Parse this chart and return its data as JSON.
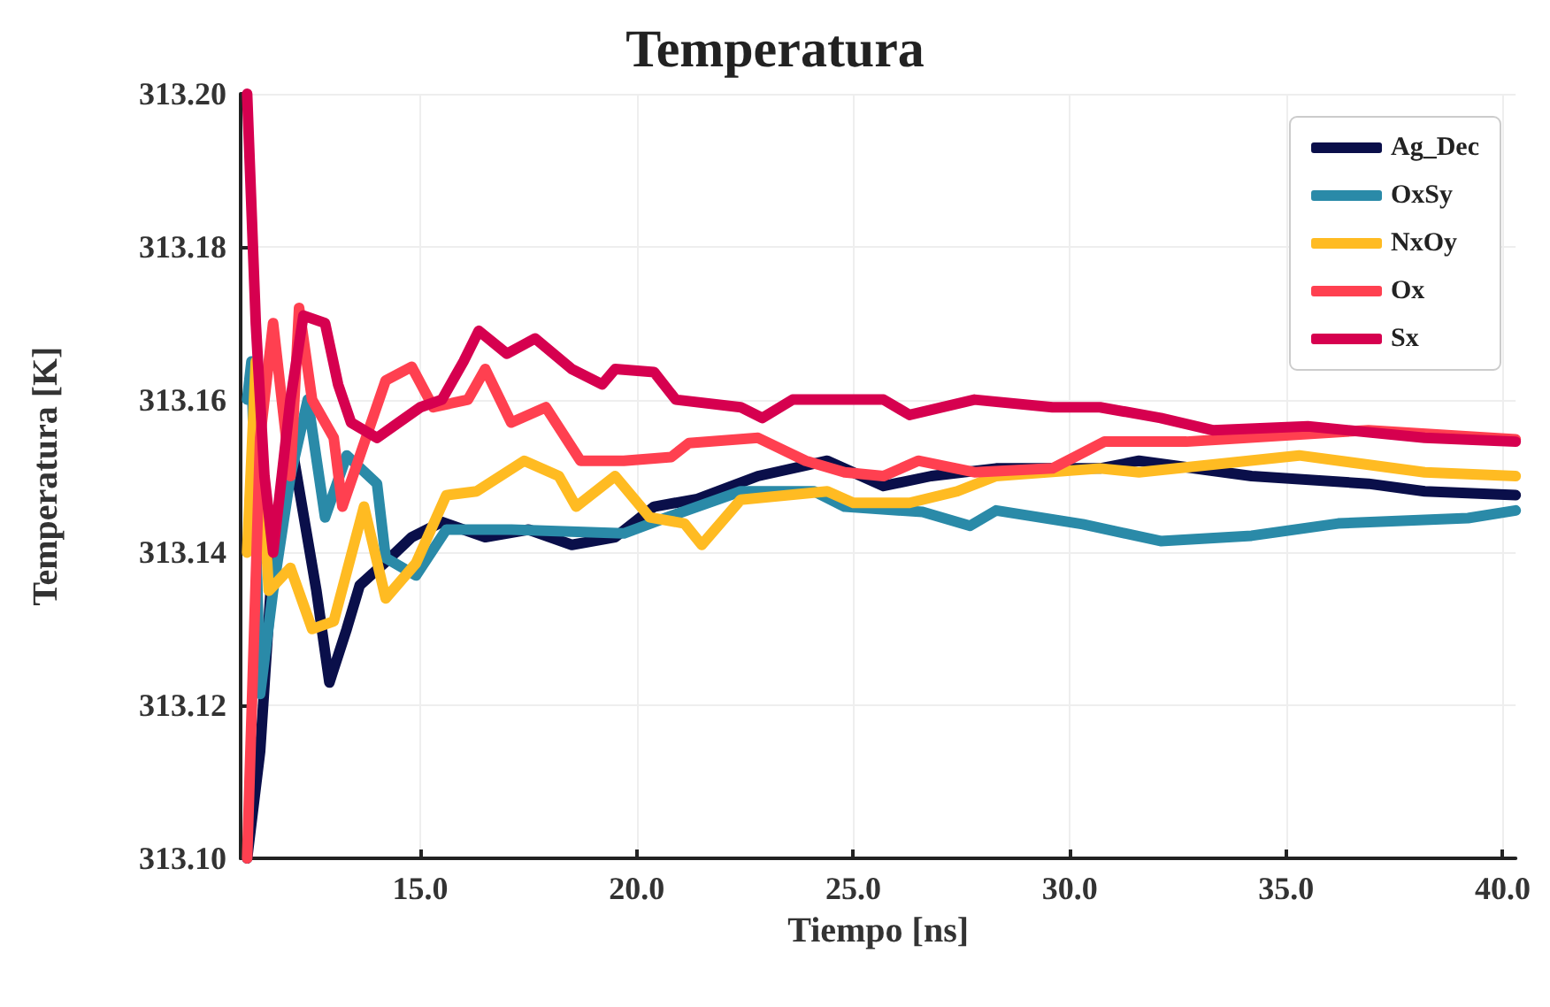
{
  "chart_data": {
    "type": "line",
    "title": "Temperatura",
    "xlabel": "Tiempo [ns]",
    "ylabel": "Temperatura [K]",
    "xlim": [
      10.85,
      40.3
    ],
    "xticks": [
      {
        "value": 15,
        "label": "15.0"
      },
      {
        "value": 20,
        "label": "20.0"
      },
      {
        "value": 25,
        "label": "25.0"
      },
      {
        "value": 30,
        "label": "30.0"
      },
      {
        "value": 35,
        "label": "35.0"
      },
      {
        "value": 40,
        "label": "40.0"
      }
    ],
    "ylim": [
      313.1,
      313.2
    ],
    "yticks": [
      {
        "value": 313.1,
        "label": "313.10"
      },
      {
        "value": 313.12,
        "label": "313.12"
      },
      {
        "value": 313.14,
        "label": "313.14"
      },
      {
        "value": 313.16,
        "label": "313.16"
      },
      {
        "value": 313.18,
        "label": "313.18"
      },
      {
        "value": 313.2,
        "label": "313.20"
      }
    ],
    "grid": true,
    "legend": "top right",
    "marker": "none",
    "line_style": "solid",
    "series": [
      {
        "name": "Ag_Dec",
        "color": "#0a0f4a",
        "x": [
          11.0,
          11.3,
          11.6,
          12.0,
          12.3,
          12.6,
          12.9,
          13.3,
          13.6,
          14.3,
          14.8,
          15.5,
          16.5,
          17.5,
          18.5,
          19.5,
          20.4,
          21.4,
          22.8,
          24.4,
          25.7,
          26.8,
          28.3,
          30.7,
          31.6,
          34.2,
          36.9,
          38.2,
          40.3
        ],
        "values": [
          313.1,
          313.114,
          313.14,
          313.155,
          313.145,
          313.135,
          313.123,
          313.13,
          313.1357,
          313.1393,
          313.142,
          313.144,
          313.142,
          313.143,
          313.141,
          313.142,
          313.146,
          313.147,
          313.15,
          313.152,
          313.1487,
          313.15,
          313.151,
          313.151,
          313.152,
          313.15,
          313.149,
          313.148,
          313.1475
        ]
      },
      {
        "name": "OxSy",
        "color": "#2a8aa8",
        "x": [
          11.0,
          11.1,
          11.3,
          11.6,
          12.0,
          12.4,
          12.8,
          13.3,
          14.0,
          14.2,
          14.9,
          15.6,
          17.1,
          19.7,
          20.7,
          22.4,
          24.1,
          24.8,
          26.6,
          27.7,
          28.3,
          30.3,
          32.1,
          34.2,
          36.2,
          39.2,
          40.3
        ],
        "values": [
          313.16,
          313.165,
          313.1215,
          313.135,
          313.15,
          313.16,
          313.1446,
          313.1527,
          313.149,
          313.1393,
          313.137,
          313.143,
          313.143,
          313.1425,
          313.1446,
          313.148,
          313.148,
          313.146,
          313.1453,
          313.1435,
          313.1455,
          313.1437,
          313.1415,
          313.1422,
          313.1438,
          313.1445,
          313.1455
        ]
      },
      {
        "name": "NxOy",
        "color": "#ffbb22",
        "x": [
          11.0,
          11.2,
          11.5,
          12.0,
          12.5,
          13.0,
          13.7,
          14.2,
          14.9,
          15.6,
          16.3,
          17.4,
          18.2,
          18.6,
          19.5,
          20.3,
          21.1,
          21.5,
          22.4,
          24.4,
          25.0,
          26.3,
          27.4,
          28.3,
          30.7,
          31.6,
          35.3,
          38.2,
          40.3
        ],
        "values": [
          313.14,
          313.165,
          313.135,
          313.138,
          313.13,
          313.131,
          313.146,
          313.134,
          313.1386,
          313.1475,
          313.148,
          313.152,
          313.15,
          313.146,
          313.15,
          313.1446,
          313.1438,
          313.141,
          313.1469,
          313.148,
          313.1465,
          313.1465,
          313.148,
          313.15,
          313.151,
          313.1505,
          313.1527,
          313.1505,
          313.15
        ]
      },
      {
        "name": "Ox",
        "color": "#ff4050",
        "x": [
          11.0,
          11.3,
          11.6,
          12.0,
          12.2,
          12.5,
          13.0,
          13.2,
          14.2,
          14.8,
          15.3,
          16.1,
          16.5,
          17.1,
          17.9,
          18.7,
          19.7,
          20.8,
          21.2,
          22.8,
          23.9,
          24.8,
          25.7,
          26.5,
          27.8,
          29.6,
          30.8,
          32.7,
          36.9,
          40.3
        ],
        "values": [
          313.1,
          313.155,
          313.17,
          313.15,
          313.172,
          313.16,
          313.155,
          313.146,
          313.1625,
          313.1643,
          313.159,
          313.16,
          313.164,
          313.157,
          313.159,
          313.152,
          313.152,
          313.1525,
          313.1543,
          313.155,
          313.152,
          313.1505,
          313.15,
          313.152,
          313.1505,
          313.151,
          313.1545,
          313.1545,
          313.156,
          313.1548
        ]
      },
      {
        "name": "Sx",
        "color": "#d6004f",
        "x": [
          11.0,
          11.2,
          11.4,
          11.6,
          12.0,
          12.3,
          12.8,
          13.1,
          13.4,
          14.0,
          14.5,
          15.0,
          15.5,
          16.0,
          16.35,
          17.0,
          17.65,
          18.5,
          19.2,
          19.5,
          20.4,
          20.9,
          22.4,
          22.9,
          23.6,
          25.7,
          26.3,
          27.8,
          29.6,
          30.7,
          32.1,
          33.3,
          35.5,
          38.2,
          40.3
        ],
        "values": [
          313.2,
          313.17,
          313.15,
          313.14,
          313.16,
          313.171,
          313.17,
          313.162,
          313.157,
          313.155,
          313.157,
          313.159,
          313.16,
          313.165,
          313.169,
          313.166,
          313.168,
          313.164,
          313.162,
          313.164,
          313.1636,
          313.16,
          313.159,
          313.1576,
          313.16,
          313.16,
          313.158,
          313.16,
          313.159,
          313.159,
          313.1576,
          313.156,
          313.1565,
          313.155,
          313.1545
        ]
      }
    ]
  }
}
